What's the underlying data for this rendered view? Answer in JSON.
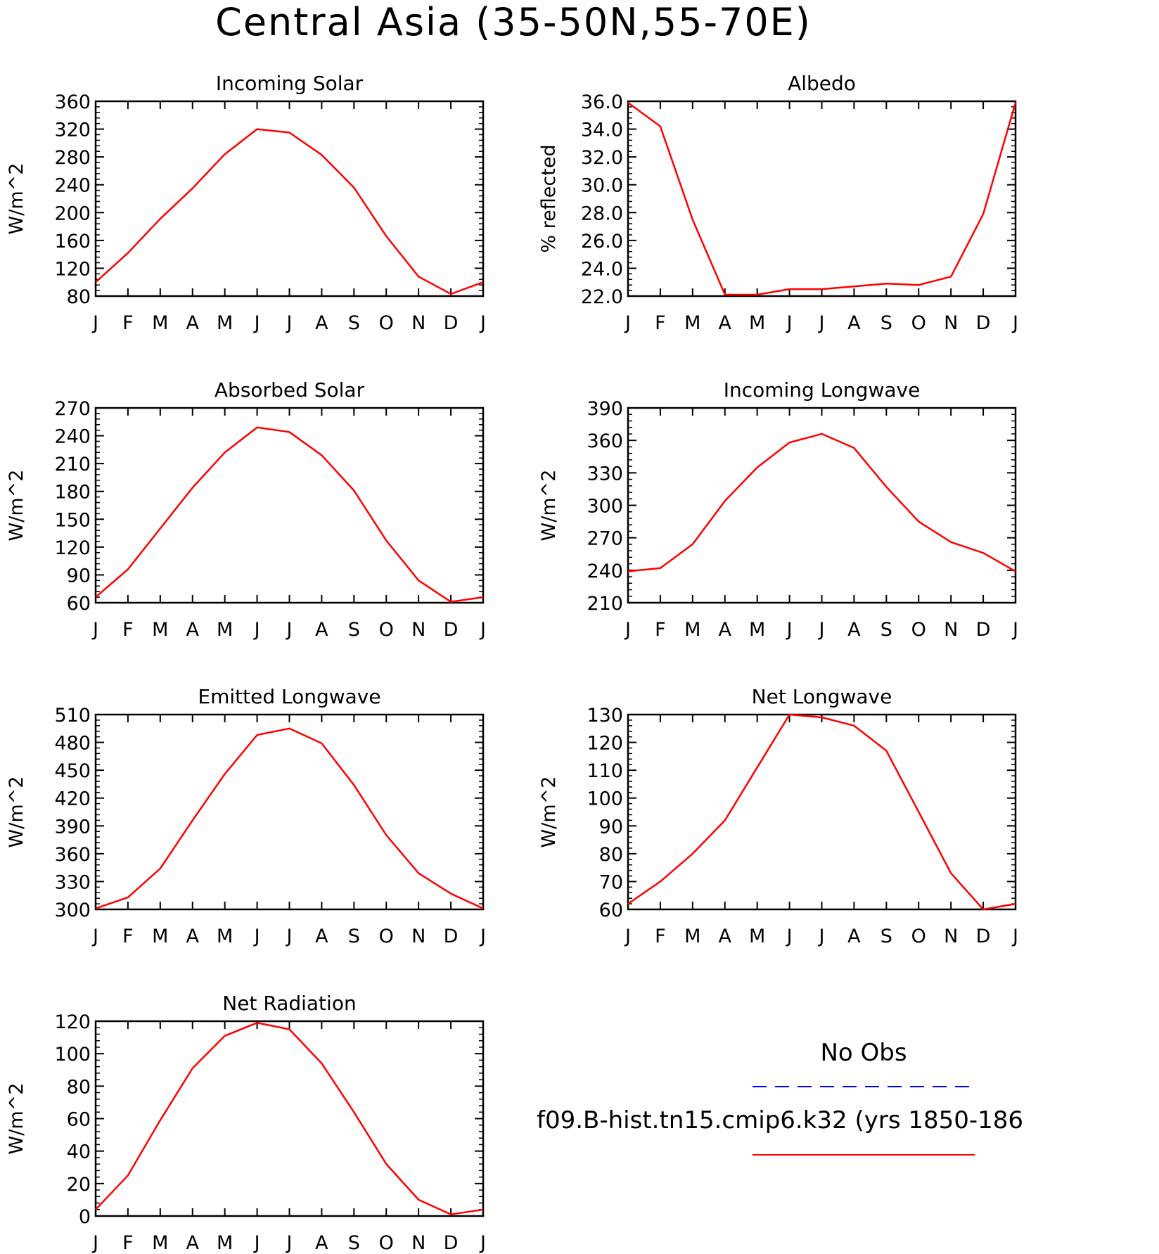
{
  "figure_title": "Central Asia (35-50N,55-70E)",
  "legend": {
    "obs_label": "No Obs",
    "model_label": "f09.B-hist.tn15.cmip6.k32 (yrs 1850-186",
    "obs_color": "#0000ff",
    "model_color": "#ff0000"
  },
  "chart_data": [
    {
      "type": "line",
      "title": "Incoming Solar",
      "ylabel": "W/m^2",
      "x": [
        "J",
        "F",
        "M",
        "A",
        "M",
        "J",
        "J",
        "A",
        "S",
        "O",
        "N",
        "D",
        "J"
      ],
      "ylim": [
        80,
        360
      ],
      "yticks": [
        "80",
        "120",
        "160",
        "200",
        "240",
        "280",
        "320",
        "360"
      ],
      "series": [
        {
          "values": [
            100,
            142,
            191,
            235,
            284,
            320,
            315,
            283,
            236,
            166,
            108,
            83,
            100
          ]
        }
      ]
    },
    {
      "type": "line",
      "title": "Albedo",
      "ylabel": "% reflected",
      "x": [
        "J",
        "F",
        "M",
        "A",
        "M",
        "J",
        "J",
        "A",
        "S",
        "O",
        "N",
        "D",
        "J"
      ],
      "ylim": [
        22.0,
        36.0
      ],
      "yticks": [
        "22.0",
        "24.0",
        "26.0",
        "28.0",
        "30.0",
        "32.0",
        "34.0",
        "36.0"
      ],
      "series": [
        {
          "values": [
            35.9,
            34.2,
            27.5,
            22.1,
            22.1,
            22.5,
            22.5,
            22.7,
            22.9,
            22.8,
            23.4,
            27.9,
            35.9
          ]
        }
      ]
    },
    {
      "type": "line",
      "title": "Absorbed Solar",
      "ylabel": "W/m^2",
      "x": [
        "J",
        "F",
        "M",
        "A",
        "M",
        "J",
        "J",
        "A",
        "S",
        "O",
        "N",
        "D",
        "J"
      ],
      "ylim": [
        60,
        270
      ],
      "yticks": [
        "60",
        "90",
        "120",
        "150",
        "180",
        "210",
        "240",
        "270"
      ],
      "series": [
        {
          "values": [
            66,
            96,
            140,
            184,
            222,
            249,
            244,
            219,
            181,
            127,
            84,
            61,
            66
          ]
        }
      ]
    },
    {
      "type": "line",
      "title": "Incoming Longwave",
      "ylabel": "W/m^2",
      "x": [
        "J",
        "F",
        "M",
        "A",
        "M",
        "J",
        "J",
        "A",
        "S",
        "O",
        "N",
        "D",
        "J"
      ],
      "ylim": [
        210,
        390
      ],
      "yticks": [
        "210",
        "240",
        "270",
        "300",
        "330",
        "360",
        "390"
      ],
      "series": [
        {
          "values": [
            239,
            242,
            264,
            304,
            335,
            358,
            366,
            353,
            317,
            285,
            266,
            256,
            239
          ]
        }
      ]
    },
    {
      "type": "line",
      "title": "Emitted Longwave",
      "ylabel": "W/m^2",
      "x": [
        "J",
        "F",
        "M",
        "A",
        "M",
        "J",
        "J",
        "A",
        "S",
        "O",
        "N",
        "D",
        "J"
      ],
      "ylim": [
        300,
        510
      ],
      "yticks": [
        "300",
        "330",
        "360",
        "390",
        "420",
        "450",
        "480",
        "510"
      ],
      "series": [
        {
          "values": [
            301,
            313,
            344,
            396,
            446,
            488,
            495,
            479,
            434,
            380,
            339,
            317,
            301
          ]
        }
      ]
    },
    {
      "type": "line",
      "title": "Net Longwave",
      "ylabel": "W/m^2",
      "x": [
        "J",
        "F",
        "M",
        "A",
        "M",
        "J",
        "J",
        "A",
        "S",
        "O",
        "N",
        "D",
        "J"
      ],
      "ylim": [
        60,
        130
      ],
      "yticks": [
        "60",
        "70",
        "80",
        "90",
        "100",
        "110",
        "120",
        "130"
      ],
      "series": [
        {
          "values": [
            62,
            70,
            80,
            92,
            111,
            130,
            129,
            126,
            117,
            95,
            73,
            60,
            62
          ]
        }
      ]
    },
    {
      "type": "line",
      "title": "Net Radiation",
      "ylabel": "W/m^2",
      "x": [
        "J",
        "F",
        "M",
        "A",
        "M",
        "J",
        "J",
        "A",
        "S",
        "O",
        "N",
        "D",
        "J"
      ],
      "ylim": [
        0,
        120
      ],
      "yticks": [
        "0",
        "20",
        "40",
        "60",
        "80",
        "100",
        "120"
      ],
      "series": [
        {
          "values": [
            4,
            25,
            59,
            91,
            111,
            119,
            115,
            94,
            64,
            32,
            10,
            1,
            4
          ]
        }
      ]
    }
  ]
}
